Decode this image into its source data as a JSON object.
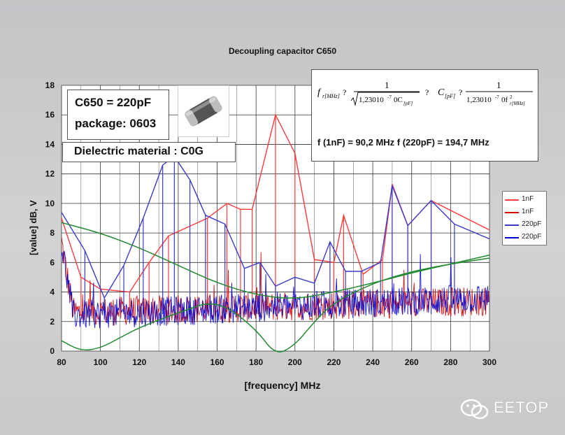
{
  "chart_data": {
    "type": "line",
    "title": "Decoupling capacitor C650",
    "xlabel": "[frequency] MHz",
    "ylabel": "[value] dB, V",
    "xlim": [
      80,
      300
    ],
    "ylim": [
      0,
      18
    ],
    "x_ticks": [
      "80",
      "100",
      "120",
      "140",
      "160",
      "180",
      "200",
      "220",
      "240",
      "260",
      "280",
      "300"
    ],
    "y_ticks": [
      "0",
      "2",
      "4",
      "6",
      "8",
      "10",
      "12",
      "14",
      "16",
      "18"
    ],
    "grid": true,
    "legend_position": "right",
    "series": [
      {
        "name": "1nF",
        "color": "#ff3b3b",
        "style": "thin",
        "x": [
          80,
          90,
          100,
          115,
          125,
          135,
          155,
          165,
          172,
          178,
          190,
          200,
          210,
          220,
          225,
          235,
          245,
          250,
          258,
          270,
          300
        ],
        "y": [
          9.0,
          5.0,
          4.2,
          4.0,
          6.0,
          7.8,
          9.0,
          10.0,
          9.6,
          9.6,
          16.0,
          13.4,
          6.2,
          6.0,
          9.2,
          5.2,
          6.2,
          11.3,
          8.5,
          10.2,
          8.2
        ]
      },
      {
        "name": "1nF",
        "color": "#d00000",
        "style": "spiky",
        "x": [
          80,
          300
        ],
        "y": [
          2.6,
          3.4
        ]
      },
      {
        "name": "220pF",
        "color": "#3a3acc",
        "style": "thin",
        "x": [
          80,
          92,
          102,
          112,
          122,
          132,
          138,
          146,
          154,
          164,
          174,
          182,
          190,
          200,
          210,
          218,
          226,
          234,
          244,
          250,
          258,
          270,
          282,
          300
        ],
        "y": [
          9.4,
          6.8,
          3.6,
          5.8,
          9.0,
          12.6,
          13.2,
          11.6,
          9.2,
          8.6,
          5.6,
          6.0,
          4.4,
          5.0,
          4.6,
          7.4,
          5.4,
          5.4,
          6.0,
          11.2,
          8.5,
          10.2,
          8.6,
          7.6
        ]
      },
      {
        "name": "220pF",
        "color": "#0000cc",
        "style": "spiky",
        "x": [
          80,
          300
        ],
        "y": [
          2.4,
          3.6
        ]
      },
      {
        "name": "",
        "color": "#1f8a2e",
        "style": "smooth",
        "x": [
          80,
          100,
          120,
          140,
          160,
          180,
          200,
          220,
          240,
          260,
          280,
          300
        ],
        "y": [
          8.7,
          8.0,
          7.0,
          5.8,
          4.6,
          3.8,
          3.5,
          4.0,
          4.6,
          5.3,
          5.9,
          6.5
        ]
      },
      {
        "name": "",
        "color": "#1f8a2e",
        "style": "smooth",
        "x": [
          80,
          90,
          100,
          110,
          120,
          140,
          160,
          180,
          190,
          200,
          210,
          220,
          240,
          260,
          280,
          300
        ],
        "y": [
          0.7,
          0.0,
          0.2,
          0.9,
          1.6,
          2.6,
          3.5,
          1.5,
          -0.3,
          0.4,
          2.0,
          3.3,
          4.6,
          5.4,
          5.9,
          6.3
        ]
      }
    ]
  },
  "info": {
    "cap_value": "C650 = 220pF",
    "package": "package: 0603",
    "dielectric": "Dielectric material : C0G",
    "formula_text": "f (1nF) = 90,2 MHz f (220pF) = 194,7 MHz",
    "formula_sub": "r",
    "f1_numerator": "1",
    "f1_const": "1,23010",
    "f1_exp": "-7",
    "f2_numerator": "1",
    "f2_const": "1,23010",
    "f2_exp": "-7",
    "q": "?"
  },
  "legend": [
    {
      "label": "1nF",
      "color": "#ff3b3b"
    },
    {
      "label": "1nF",
      "color": "#d00000"
    },
    {
      "label": "220pF",
      "color": "#3a3acc"
    },
    {
      "label": "220pF",
      "color": "#0000cc"
    }
  ],
  "watermark": "EETOP"
}
